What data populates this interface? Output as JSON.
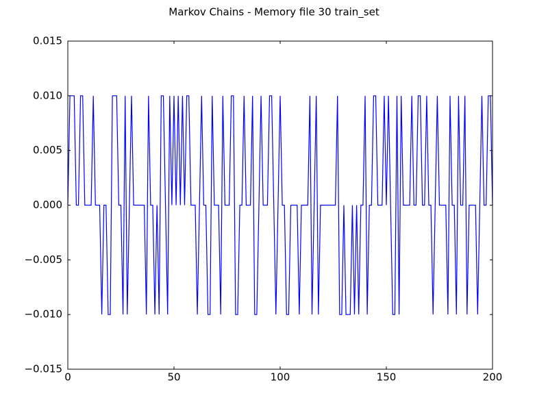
{
  "chart_data": {
    "type": "line",
    "title": "Markov Chains - Memory file 30 train_set",
    "color": "#0000ff",
    "xlim": [
      0,
      200
    ],
    "xticks": [
      0,
      50,
      100,
      150,
      200
    ],
    "ylim": [
      -0.015,
      0.015
    ],
    "yticks": [
      {
        "value": -0.015,
        "label": "−0.015"
      },
      {
        "value": -0.01,
        "label": "−0.010"
      },
      {
        "value": -0.005,
        "label": "−0.005"
      },
      {
        "value": 0,
        "label": "0.000"
      },
      0.005,
      {
        "value": 0.01,
        "label": "0.010"
      },
      0.015
    ],
    "x": [
      0,
      1,
      2,
      3,
      4,
      5,
      6,
      7,
      8,
      9,
      10,
      11,
      12,
      13,
      14,
      15,
      16,
      17,
      18,
      19,
      20,
      21,
      22,
      23,
      24,
      25,
      26,
      27,
      28,
      29,
      30,
      31,
      32,
      33,
      34,
      35,
      36,
      37,
      38,
      39,
      40,
      41,
      42,
      43,
      44,
      45,
      46,
      47,
      48,
      49,
      50,
      51,
      52,
      53,
      54,
      55,
      56,
      57,
      58,
      59,
      60,
      61,
      62,
      63,
      64,
      65,
      66,
      67,
      68,
      69,
      70,
      71,
      72,
      73,
      74,
      75,
      76,
      77,
      78,
      79,
      80,
      81,
      82,
      83,
      84,
      85,
      86,
      87,
      88,
      89,
      90,
      91,
      92,
      93,
      94,
      95,
      96,
      97,
      98,
      99,
      100,
      101,
      102,
      103,
      104,
      105,
      106,
      107,
      108,
      109,
      110,
      111,
      112,
      113,
      114,
      115,
      116,
      117,
      118,
      119,
      120,
      121,
      122,
      123,
      124,
      125,
      126,
      127,
      128,
      129,
      130,
      131,
      132,
      133,
      134,
      135,
      136,
      137,
      138,
      139,
      140,
      141,
      142,
      143,
      144,
      145,
      146,
      147,
      148,
      149,
      150,
      151,
      152,
      153,
      154,
      155,
      156,
      157,
      158,
      159,
      160,
      161,
      162,
      163,
      164,
      165,
      166,
      167,
      168,
      169,
      170,
      171,
      172,
      173,
      174,
      175,
      176,
      177,
      178,
      179,
      180,
      181,
      182,
      183,
      184,
      185,
      186,
      187,
      188,
      189,
      190,
      191,
      192,
      193,
      194,
      195,
      196,
      197,
      198,
      199,
      200
    ],
    "values": [
      0,
      0.01,
      0.01,
      0.01,
      0,
      0,
      0.01,
      0.01,
      0,
      0,
      0,
      0,
      0.01,
      0,
      0,
      0,
      -0.01,
      0,
      0,
      -0.01,
      -0.01,
      0.01,
      0.01,
      0.01,
      0,
      0,
      -0.01,
      0.01,
      -0.01,
      0,
      0.01,
      0,
      0,
      0,
      0,
      0,
      0,
      -0.01,
      0.01,
      0,
      0,
      -0.01,
      0,
      -0.01,
      0.01,
      0.01,
      0,
      -0.01,
      0.01,
      0,
      0.01,
      0,
      0.01,
      0,
      0.01,
      0,
      0.01,
      0.01,
      0,
      0,
      0,
      -0.01,
      0,
      0.01,
      0,
      0,
      -0.01,
      -0.01,
      0.01,
      0,
      0,
      0,
      -0.01,
      0.01,
      0,
      0,
      0,
      0.01,
      0.01,
      -0.01,
      -0.01,
      0,
      0,
      0.01,
      0,
      0,
      0,
      0.01,
      -0.01,
      -0.01,
      0,
      0.01,
      0,
      0,
      0,
      0.01,
      0.01,
      0,
      -0.01,
      0,
      0.01,
      0,
      0,
      -0.01,
      -0.01,
      0,
      0,
      0,
      0,
      -0.01,
      0,
      0,
      0,
      0,
      0.01,
      -0.01,
      0,
      0.01,
      -0.01,
      0,
      0,
      0,
      0,
      0,
      0,
      0,
      0,
      0.01,
      -0.01,
      -0.01,
      0,
      -0.01,
      -0.01,
      -0.01,
      0,
      -0.01,
      0,
      -0.01,
      0,
      0,
      0.01,
      -0.01,
      0,
      0,
      0.01,
      0.01,
      0,
      0,
      0,
      0.01,
      0,
      0.01,
      0,
      -0.01,
      -0.01,
      0.01,
      -0.01,
      0.01,
      0,
      0,
      0,
      0,
      0.01,
      0,
      0,
      0.01,
      0.01,
      0,
      0,
      0.01,
      0,
      0,
      -0.01,
      0,
      0.01,
      0,
      0,
      0,
      0,
      -0.01,
      0.01,
      0,
      0,
      -0.01,
      0.01,
      0,
      0,
      0.01,
      -0.01,
      0,
      0,
      0,
      0,
      -0.01,
      0,
      0.01,
      0,
      0,
      0.01,
      0.01,
      0
    ]
  }
}
